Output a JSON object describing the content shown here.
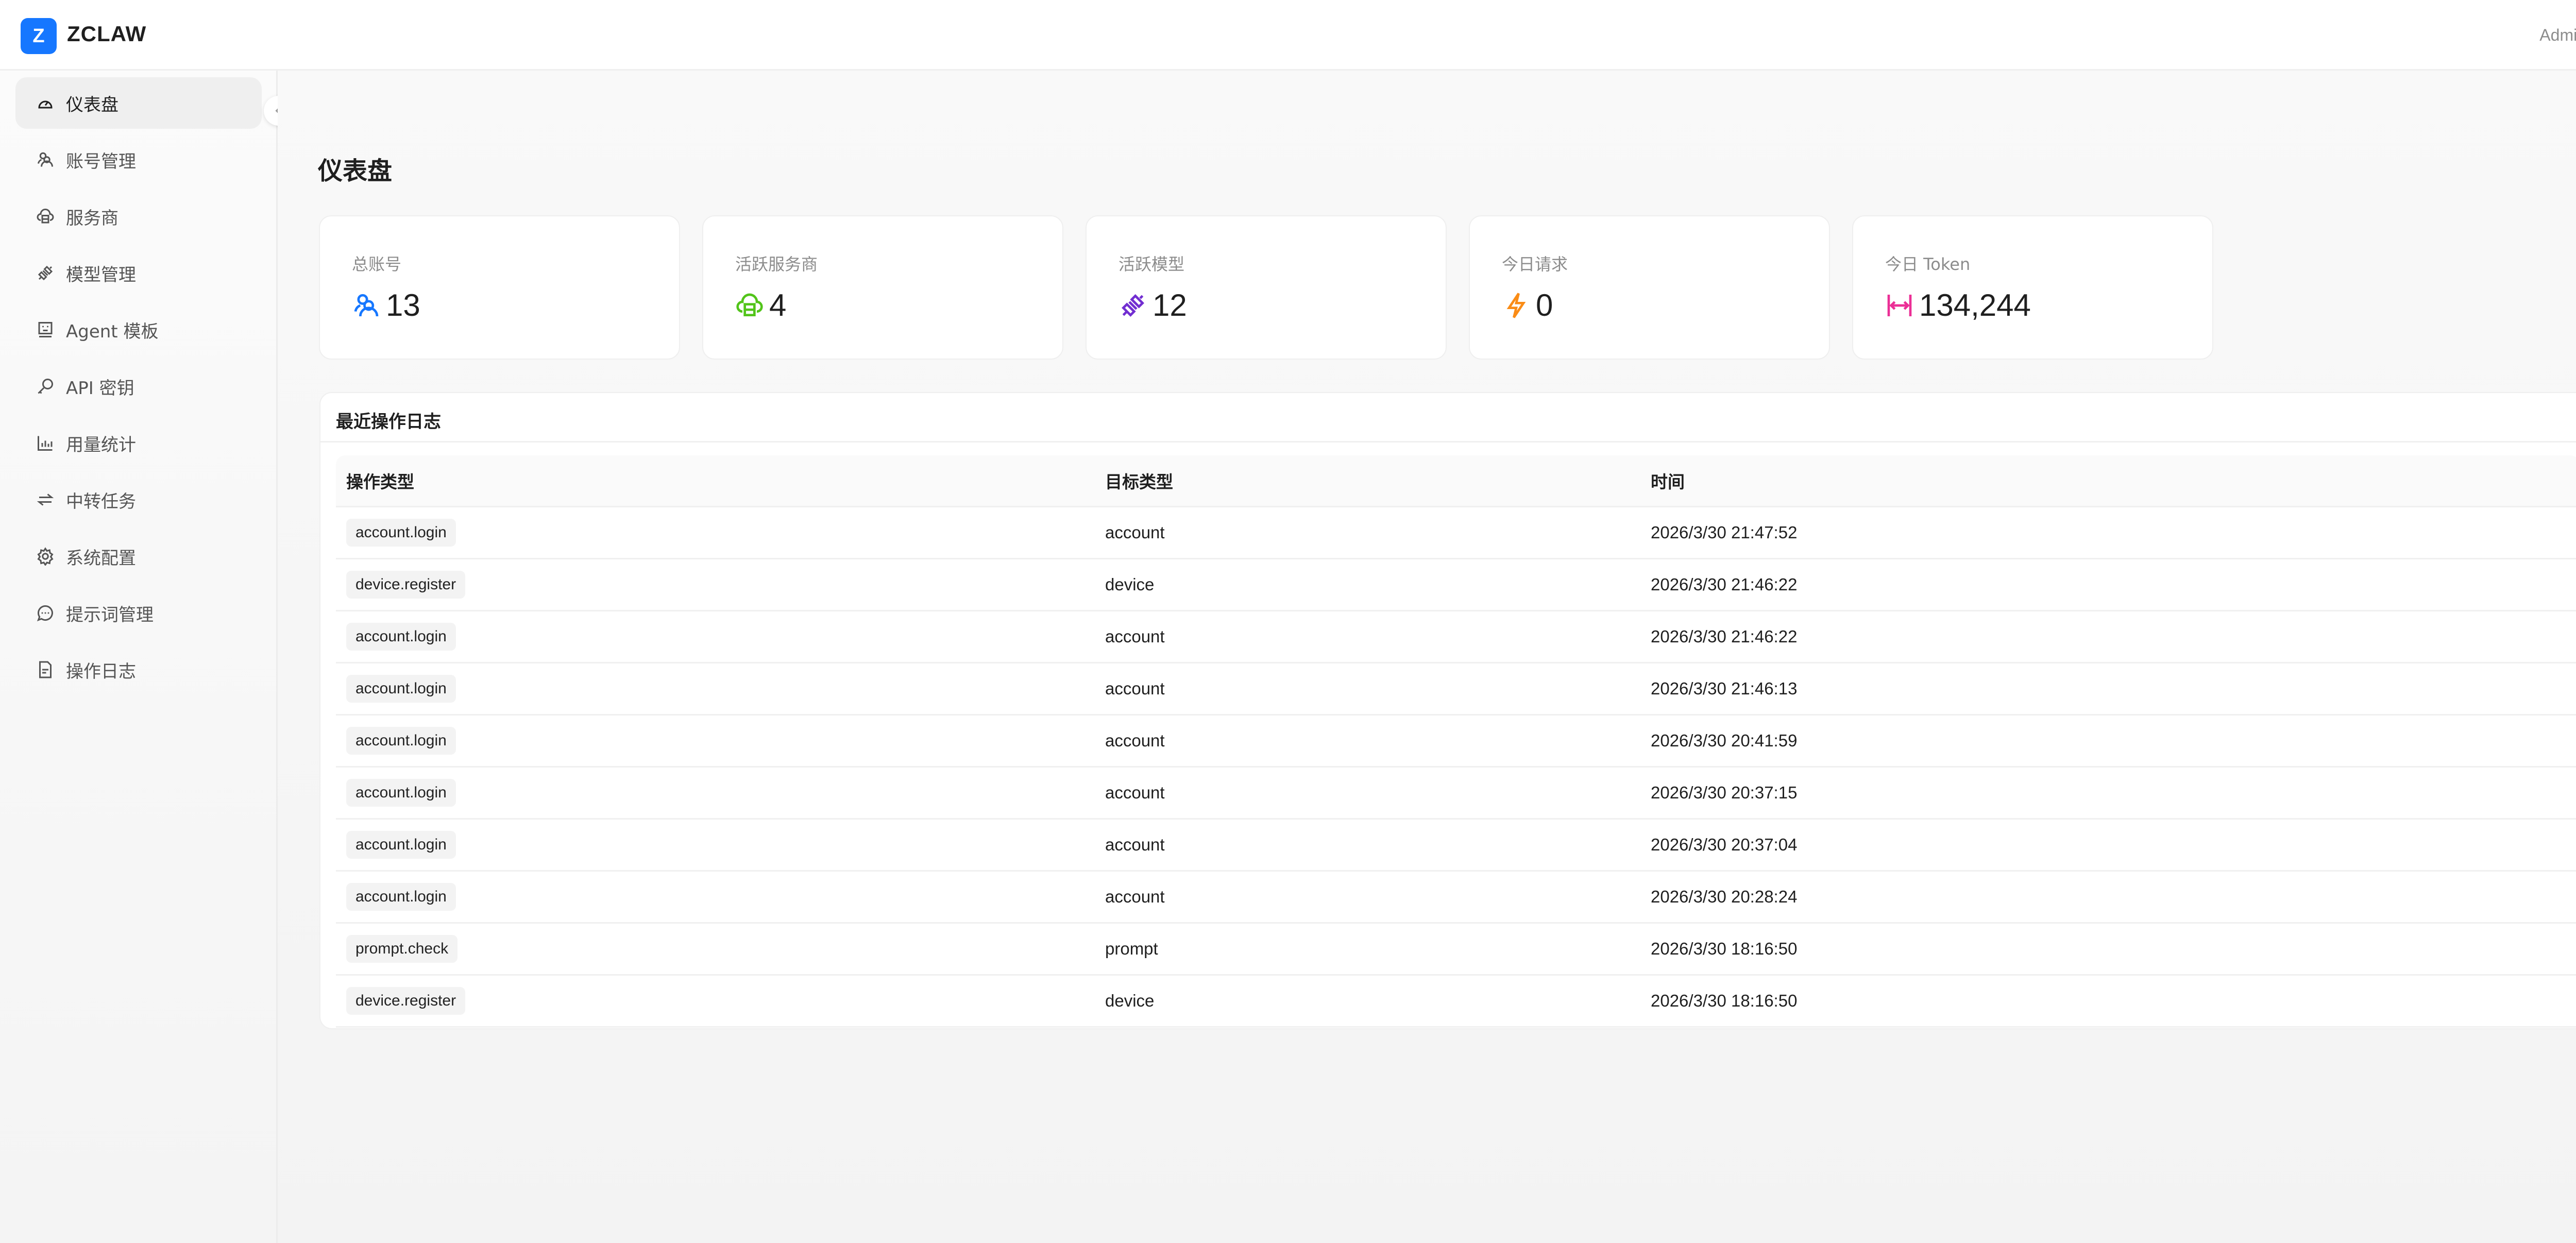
{
  "app": {
    "logo_letter": "Z",
    "brand": "ZCLAW",
    "user": "Admin",
    "accent": "#1677ff"
  },
  "sidebar": {
    "items": [
      {
        "label": "仪表盘",
        "icon": "dashboard-icon",
        "active": true
      },
      {
        "label": "账号管理",
        "icon": "users-icon"
      },
      {
        "label": "服务商",
        "icon": "cloud-server-icon"
      },
      {
        "label": "模型管理",
        "icon": "plug-icon"
      },
      {
        "label": "Agent 模板",
        "icon": "robot-icon"
      },
      {
        "label": "API 密钥",
        "icon": "key-icon"
      },
      {
        "label": "用量统计",
        "icon": "bar-chart-icon"
      },
      {
        "label": "中转任务",
        "icon": "swap-icon"
      },
      {
        "label": "系统配置",
        "icon": "gear-icon"
      },
      {
        "label": "提示词管理",
        "icon": "message-icon"
      },
      {
        "label": "操作日志",
        "icon": "file-text-icon"
      }
    ]
  },
  "page": {
    "title": "仪表盘"
  },
  "stats": [
    {
      "label": "总账号",
      "value": "13",
      "icon": "users-icon",
      "color": "#1677ff"
    },
    {
      "label": "活跃服务商",
      "value": "4",
      "icon": "cloud-server-icon",
      "color": "#52c41a"
    },
    {
      "label": "活跃模型",
      "value": "12",
      "icon": "plug-icon",
      "color": "#722ed1"
    },
    {
      "label": "今日请求",
      "value": "0",
      "icon": "lightning-icon",
      "color": "#fa8c16"
    },
    {
      "label": "今日 Token",
      "value": "134,244",
      "icon": "column-width-icon",
      "color": "#eb2f96"
    }
  ],
  "logs": {
    "title": "最近操作日志",
    "columns": [
      "操作类型",
      "目标类型",
      "时间"
    ],
    "rows": [
      [
        "account.login",
        "account",
        "2026/3/30 21:47:52"
      ],
      [
        "device.register",
        "device",
        "2026/3/30 21:46:22"
      ],
      [
        "account.login",
        "account",
        "2026/3/30 21:46:22"
      ],
      [
        "account.login",
        "account",
        "2026/3/30 21:46:13"
      ],
      [
        "account.login",
        "account",
        "2026/3/30 20:41:59"
      ],
      [
        "account.login",
        "account",
        "2026/3/30 20:37:15"
      ],
      [
        "account.login",
        "account",
        "2026/3/30 20:37:04"
      ],
      [
        "account.login",
        "account",
        "2026/3/30 20:28:24"
      ],
      [
        "prompt.check",
        "prompt",
        "2026/3/30 18:16:50"
      ],
      [
        "device.register",
        "device",
        "2026/3/30 18:16:50"
      ]
    ]
  }
}
